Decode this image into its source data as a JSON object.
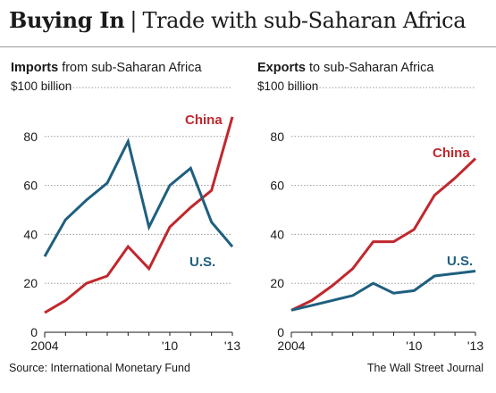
{
  "header": {
    "title_bold": "Buying In",
    "separator": "|",
    "title_rest": "Trade with sub-Saharan Africa"
  },
  "footer": {
    "source": "Source: International Monetary Fund",
    "credit": "The Wall Street Journal"
  },
  "colors": {
    "china": "#c0282d",
    "us": "#1f5f7f",
    "grid": "#9a9a9a"
  },
  "chart_data": [
    {
      "type": "line",
      "title_bold": "Imports",
      "title_rest": " from sub-Saharan Africa",
      "unit_label": "$100 billion",
      "ylim": [
        0,
        100
      ],
      "yticks": [
        "20",
        "40",
        "60",
        "80"
      ],
      "y_zero": "0",
      "xlabels": [
        "2004",
        "'10",
        "'13"
      ],
      "x": [
        2004,
        2005,
        2006,
        2007,
        2008,
        2009,
        2010,
        2011,
        2012,
        2013
      ],
      "grid": true,
      "series": [
        {
          "name": "China",
          "color": "#c0282d",
          "values": [
            8,
            13,
            20,
            23,
            35,
            26,
            43,
            51,
            58,
            88
          ]
        },
        {
          "name": "U.S.",
          "color": "#1f5f7f",
          "values": [
            31,
            46,
            54,
            61,
            78,
            43,
            60,
            67,
            45,
            35
          ]
        }
      ]
    },
    {
      "type": "line",
      "title_bold": "Exports",
      "title_rest": " to sub-Saharan Africa",
      "unit_label": "$100 billion",
      "ylim": [
        0,
        100
      ],
      "yticks": [
        "20",
        "40",
        "60",
        "80"
      ],
      "y_zero": "0",
      "xlabels": [
        "2004",
        "'10",
        "'13"
      ],
      "x": [
        2004,
        2005,
        2006,
        2007,
        2008,
        2009,
        2010,
        2011,
        2012,
        2013
      ],
      "grid": true,
      "series": [
        {
          "name": "China",
          "color": "#c0282d",
          "values": [
            9,
            13,
            19,
            26,
            37,
            37,
            42,
            56,
            63,
            71
          ]
        },
        {
          "name": "U.S.",
          "color": "#1f5f7f",
          "values": [
            9,
            11,
            13,
            15,
            20,
            16,
            17,
            23,
            24,
            25
          ]
        }
      ]
    }
  ]
}
